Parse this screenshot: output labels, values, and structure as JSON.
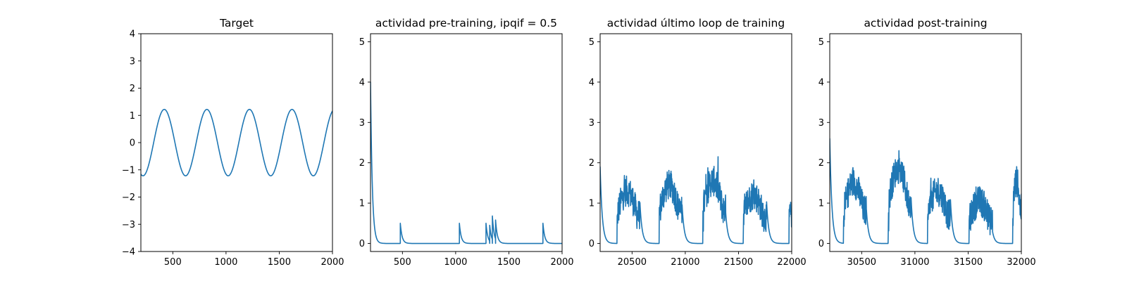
{
  "figure": {
    "background": "#ffffff"
  },
  "chart_data": [
    {
      "type": "line",
      "title": "Target",
      "xlim": [
        200,
        2000
      ],
      "ylim": [
        -4,
        4
      ],
      "xticks": [
        500,
        1000,
        1500,
        2000
      ],
      "yticks": [
        -4,
        -3,
        -2,
        -1,
        0,
        1,
        2,
        3,
        4
      ],
      "color": "#1f77b4",
      "series": [
        {
          "shape": "sine",
          "amplitude": 1.22,
          "period": 400,
          "trough_at": 220,
          "x": [
            200,
            220,
            320,
            420,
            520,
            620,
            720,
            820,
            920,
            1020,
            1120,
            1220,
            1320,
            1420,
            1520,
            1620,
            1720,
            1820,
            1920,
            2000
          ],
          "y": [
            -1.2,
            -1.22,
            0,
            1.22,
            0,
            -1.22,
            0,
            1.22,
            0,
            -1.22,
            0,
            1.22,
            0,
            -1.22,
            0,
            1.22,
            0,
            -1.22,
            0,
            1.16
          ]
        }
      ]
    },
    {
      "type": "line",
      "title": "actividad pre-training, ipqif = 0.5",
      "xlim": [
        200,
        2000
      ],
      "ylim": [
        -0.2,
        5.2
      ],
      "xticks": [
        500,
        1000,
        1500,
        2000
      ],
      "yticks": [
        0,
        1,
        2,
        3,
        4,
        5
      ],
      "color": "#1f77b4",
      "series": [
        {
          "start": {
            "x": 200,
            "y": 4.0
          },
          "decay_per_unit_x": 0.06,
          "spikes": [
            {
              "x": 480,
              "y": 0.5
            },
            {
              "x": 1035,
              "y": 0.5
            },
            {
              "x": 1285,
              "y": 0.5
            },
            {
              "x": 1320,
              "y": 0.45
            },
            {
              "x": 1345,
              "y": 0.68
            },
            {
              "x": 1375,
              "y": 0.58
            },
            {
              "x": 1820,
              "y": 0.5
            }
          ]
        }
      ]
    },
    {
      "type": "line",
      "title": "actividad último loop de training",
      "xlim": [
        20200,
        22000
      ],
      "ylim": [
        -0.2,
        5.2
      ],
      "xticks": [
        20500,
        21000,
        21500,
        22000
      ],
      "yticks": [
        0,
        1,
        2,
        3,
        4,
        5
      ],
      "color": "#1f77b4",
      "series": [
        {
          "start": {
            "x": 20200,
            "y": 1.9
          },
          "decay_per_unit_x": 0.05,
          "bursts": [
            {
              "start": 20360,
              "end": 20575,
              "level": 1.3,
              "peak": 1.82
            },
            {
              "start": 20755,
              "end": 20970,
              "level": 1.45,
              "peak": 1.95
            },
            {
              "start": 21165,
              "end": 21380,
              "level": 1.55,
              "peak": 2.15
            },
            {
              "start": 21545,
              "end": 21765,
              "level": 1.2,
              "peak": 1.88
            },
            {
              "start": 21975,
              "end": 22000,
              "level": 0.8,
              "peak": 1.02
            }
          ]
        }
      ]
    },
    {
      "type": "line",
      "title": "actividad post-training",
      "xlim": [
        30200,
        32000
      ],
      "ylim": [
        -0.2,
        5.2
      ],
      "xticks": [
        30500,
        31000,
        31500,
        32000
      ],
      "yticks": [
        0,
        1,
        2,
        3,
        4,
        5
      ],
      "color": "#1f77b4",
      "series": [
        {
          "start": {
            "x": 30200,
            "y": 2.6
          },
          "decay_per_unit_x": 0.05,
          "bursts": [
            {
              "start": 30330,
              "end": 30545,
              "level": 1.5,
              "peak": 2.1
            },
            {
              "start": 30750,
              "end": 30965,
              "level": 1.85,
              "peak": 2.3
            },
            {
              "start": 31120,
              "end": 31335,
              "level": 1.3,
              "peak": 1.98
            },
            {
              "start": 31510,
              "end": 31730,
              "level": 1.05,
              "peak": 1.65
            },
            {
              "start": 31920,
              "end": 32000,
              "level": 1.55,
              "peak": 2.0
            }
          ]
        }
      ]
    }
  ]
}
